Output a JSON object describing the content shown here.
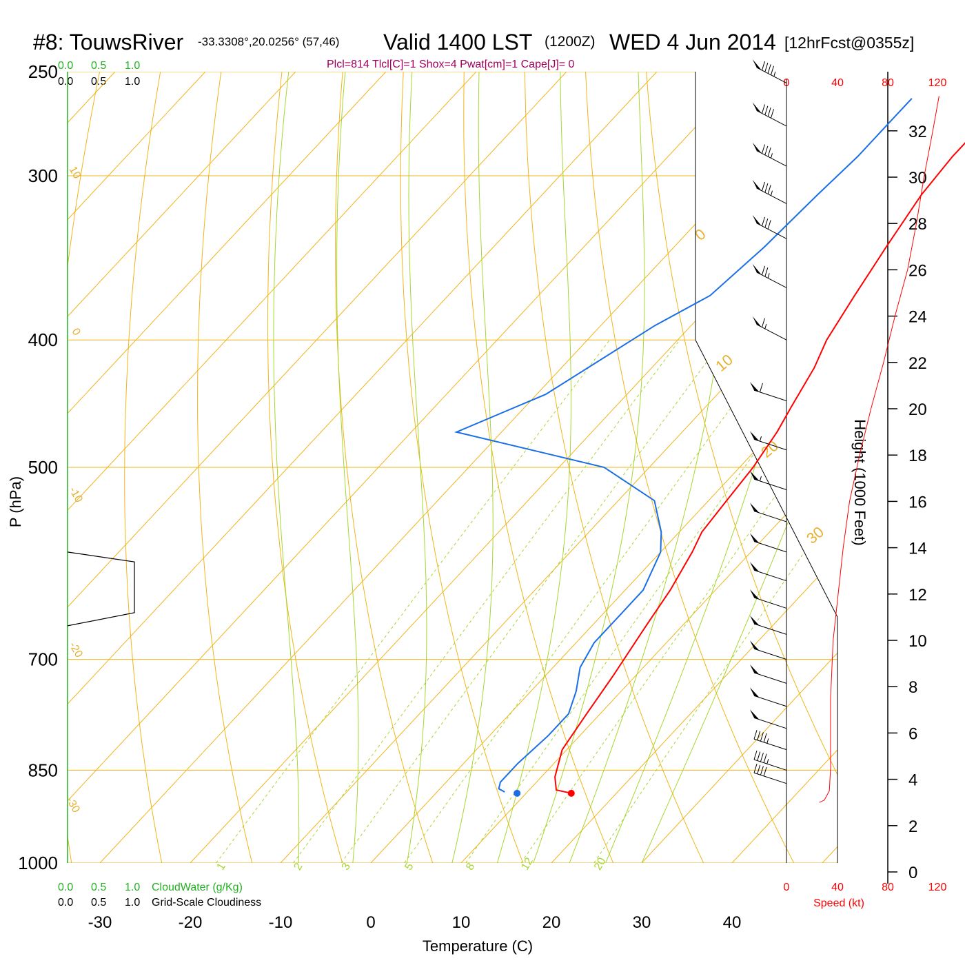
{
  "header": {
    "station": "#8: TouwsRiver",
    "coords": "-33.3308°,20.0256° (57,46)",
    "valid": "Valid 1400 LST",
    "zulu": "(1200Z)",
    "date": "WED 4 Jun 2014",
    "forecast": "[12hrFcst@0355z]",
    "stats": "Plcl=814 Tlcl[C]=1 Shox=4 Pwat[cm]=1 Cape[J]= 0"
  },
  "colors": {
    "isotherm": "#f2b418",
    "dry_adiabat": "#f2b418",
    "moist_adiabat": "#a6d630",
    "mixing_ratio": "#a6d630",
    "temperature": "#ff0000",
    "dewpoint": "#1a6ee8",
    "speed": "#ff0000",
    "cloud": "#22b022",
    "stats": "#a0005a"
  },
  "cloud_scales": {
    "cloudwater_ticks": [
      "0.0",
      "0.5",
      "1.0"
    ],
    "cloudiness_ticks": [
      "0.0",
      "0.5",
      "1.0"
    ],
    "cloudwater_label": "CloudWater (g/Kg)",
    "cloudiness_label": "Grid-Scale Cloudiness"
  },
  "speed_axis": {
    "ticks": [
      "0",
      "40",
      "80",
      "120"
    ],
    "label": "Speed (kt)"
  },
  "chart_data": {
    "type": "skew-t",
    "xlabel": "Temperature (C)",
    "ylabel": "P (hPa)",
    "y2label": "Height (1000 Feet)",
    "x_ticks": [
      -30,
      -20,
      -10,
      0,
      10,
      20,
      30,
      40
    ],
    "pressure_ticks": [
      250,
      300,
      400,
      500,
      700,
      850,
      1000
    ],
    "height_ticks_kft": [
      0,
      2,
      4,
      6,
      8,
      10,
      12,
      14,
      16,
      18,
      20,
      22,
      24,
      26,
      28,
      30,
      32
    ],
    "isotherm_labels": [
      {
        "t": 0,
        "text": "0"
      },
      {
        "t": 10,
        "text": "10"
      },
      {
        "t": 20,
        "text": "20"
      },
      {
        "t": 30,
        "text": "30"
      }
    ],
    "dry_adiabat_labels": [
      {
        "text": "10"
      },
      {
        "text": "0"
      },
      {
        "text": "-10"
      },
      {
        "text": "-20"
      },
      {
        "text": "-30"
      }
    ],
    "mixing_ratio_labels": [
      "1",
      "2",
      "3",
      "5",
      "8",
      "12",
      "20"
    ],
    "temperature_profile": [
      {
        "p": 885,
        "t": 15.0
      },
      {
        "p": 880,
        "t": 13.0
      },
      {
        "p": 860,
        "t": 11.5
      },
      {
        "p": 820,
        "t": 9.5
      },
      {
        "p": 770,
        "t": 8.5
      },
      {
        "p": 720,
        "t": 7.5
      },
      {
        "p": 660,
        "t": 6.0
      },
      {
        "p": 620,
        "t": 5.0
      },
      {
        "p": 580,
        "t": 3.5
      },
      {
        "p": 560,
        "t": 2.5
      },
      {
        "p": 530,
        "t": 2.0
      },
      {
        "p": 500,
        "t": 1.5
      },
      {
        "p": 470,
        "t": 0.5
      },
      {
        "p": 450,
        "t": -0.5
      },
      {
        "p": 420,
        "t": -2.0
      },
      {
        "p": 400,
        "t": -3.5
      },
      {
        "p": 370,
        "t": -5.0
      },
      {
        "p": 340,
        "t": -6.5
      },
      {
        "p": 310,
        "t": -8.0
      },
      {
        "p": 290,
        "t": -8.5
      },
      {
        "p": 272,
        "t": -8.5
      },
      {
        "p": 262,
        "t": -8.0
      }
    ],
    "dewpoint_profile": [
      {
        "p": 883,
        "t": 7.5
      },
      {
        "p": 878,
        "t": 6.5
      },
      {
        "p": 868,
        "t": 6.0
      },
      {
        "p": 840,
        "t": 6.0
      },
      {
        "p": 800,
        "t": 6.5
      },
      {
        "p": 770,
        "t": 6.5
      },
      {
        "p": 740,
        "t": 5.0
      },
      {
        "p": 710,
        "t": 3.0
      },
      {
        "p": 680,
        "t": 2.0
      },
      {
        "p": 650,
        "t": 2.0
      },
      {
        "p": 620,
        "t": 2.0
      },
      {
        "p": 580,
        "t": 0.0
      },
      {
        "p": 560,
        "t": -2.0
      },
      {
        "p": 530,
        "t": -6.0
      },
      {
        "p": 500,
        "t": -15.0
      },
      {
        "p": 470,
        "t": -35.0
      },
      {
        "p": 440,
        "t": -29.0
      },
      {
        "p": 390,
        "t": -24.0
      },
      {
        "p": 370,
        "t": -21.0
      },
      {
        "p": 340,
        "t": -20.0
      },
      {
        "p": 310,
        "t": -19.5
      },
      {
        "p": 290,
        "t": -19.0
      },
      {
        "p": 270,
        "t": -19.0
      },
      {
        "p": 262,
        "t": -19.0
      }
    ],
    "surface_temperature": 15.0,
    "surface_dewpoint": 9.0,
    "surface_pressure": 885,
    "cloudiness_profile": [
      {
        "p": 580,
        "value": 0.0
      },
      {
        "p": 590,
        "value": 1.0
      },
      {
        "p": 645,
        "value": 1.0
      },
      {
        "p": 660,
        "value": 0.0
      }
    ],
    "speed_profile": [
      {
        "h_kft": 3.0,
        "kt": 26
      },
      {
        "h_kft": 3.1,
        "kt": 30
      },
      {
        "h_kft": 3.5,
        "kt": 34
      },
      {
        "h_kft": 4.5,
        "kt": 35
      },
      {
        "h_kft": 6.0,
        "kt": 35
      },
      {
        "h_kft": 7.0,
        "kt": 35
      },
      {
        "h_kft": 7.5,
        "kt": 35
      },
      {
        "h_kft": 10.0,
        "kt": 37
      },
      {
        "h_kft": 12.0,
        "kt": 41
      },
      {
        "h_kft": 14.0,
        "kt": 45
      },
      {
        "h_kft": 16.0,
        "kt": 50
      },
      {
        "h_kft": 18.0,
        "kt": 58
      },
      {
        "h_kft": 20.0,
        "kt": 67
      },
      {
        "h_kft": 22.0,
        "kt": 77
      },
      {
        "h_kft": 24.0,
        "kt": 86
      },
      {
        "h_kft": 26.0,
        "kt": 96
      },
      {
        "h_kft": 28.0,
        "kt": 103
      },
      {
        "h_kft": 30.0,
        "kt": 109
      },
      {
        "h_kft": 32.0,
        "kt": 116
      },
      {
        "h_kft": 33.5,
        "kt": 121
      }
    ],
    "wind_barbs": [
      {
        "p": 255,
        "dir": 300,
        "kt": 95
      },
      {
        "p": 275,
        "dir": 300,
        "kt": 90
      },
      {
        "p": 295,
        "dir": 300,
        "kt": 85
      },
      {
        "p": 315,
        "dir": 300,
        "kt": 85
      },
      {
        "p": 335,
        "dir": 300,
        "kt": 80
      },
      {
        "p": 365,
        "dir": 300,
        "kt": 75
      },
      {
        "p": 400,
        "dir": 300,
        "kt": 65
      },
      {
        "p": 445,
        "dir": 290,
        "kt": 60
      },
      {
        "p": 485,
        "dir": 290,
        "kt": 55
      },
      {
        "p": 520,
        "dir": 290,
        "kt": 55
      },
      {
        "p": 550,
        "dir": 290,
        "kt": 50
      },
      {
        "p": 580,
        "dir": 290,
        "kt": 50
      },
      {
        "p": 610,
        "dir": 290,
        "kt": 50
      },
      {
        "p": 640,
        "dir": 290,
        "kt": 50
      },
      {
        "p": 670,
        "dir": 290,
        "kt": 50
      },
      {
        "p": 700,
        "dir": 290,
        "kt": 50
      },
      {
        "p": 730,
        "dir": 290,
        "kt": 50
      },
      {
        "p": 760,
        "dir": 290,
        "kt": 50
      },
      {
        "p": 790,
        "dir": 290,
        "kt": 50
      },
      {
        "p": 820,
        "dir": 290,
        "kt": 45
      },
      {
        "p": 850,
        "dir": 290,
        "kt": 45
      },
      {
        "p": 870,
        "dir": 290,
        "kt": 40
      }
    ]
  }
}
